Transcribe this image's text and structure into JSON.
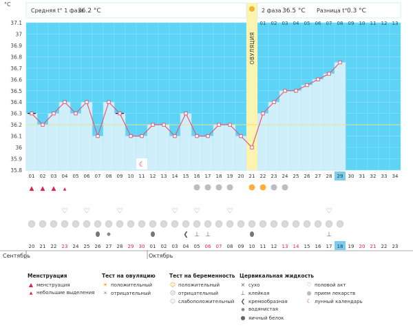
{
  "chart_data": {
    "type": "line",
    "unit_label": "°C",
    "header": {
      "phase1_label": "Средняя t° 1 фаза",
      "phase1_value": "36.2 °C",
      "phase2_label": "2 фаза",
      "phase2_value": "36.5 °C",
      "diff_label": "Разница t°",
      "diff_value": "0.3 °C"
    },
    "ylim": [
      35.8,
      37.1
    ],
    "y_ticks": [
      "35.8",
      "35.9",
      "36",
      "36.1",
      "36.2",
      "36.3",
      "36.4",
      "36.5",
      "36.6",
      "36.7",
      "36.8",
      "36.9",
      "37",
      "37.1"
    ],
    "coverline": 36.2,
    "ovulation_label": "ОВУЛЯЦИЯ",
    "ovulation_day": 21,
    "today_day": 29,
    "cycle_days": [
      "01",
      "02",
      "03",
      "04",
      "05",
      "06",
      "07",
      "08",
      "09",
      "10",
      "11",
      "12",
      "13",
      "14",
      "15",
      "16",
      "17",
      "18",
      "19",
      "20",
      "21",
      "22",
      "23",
      "24",
      "25",
      "26",
      "27",
      "28",
      "29",
      "30",
      "31",
      "32",
      "33",
      "34"
    ],
    "phase2_days": [
      "01",
      "02",
      "03",
      "04",
      "05",
      "06",
      "07",
      "08",
      "09",
      "10",
      "11",
      "12",
      "13"
    ],
    "temperatures": [
      36.3,
      36.2,
      36.3,
      36.4,
      36.3,
      36.4,
      36.1,
      36.4,
      36.3,
      36.1,
      36.1,
      36.2,
      36.2,
      36.1,
      36.3,
      36.1,
      36.1,
      36.2,
      36.2,
      36.1,
      36.0,
      36.3,
      36.4,
      36.5,
      36.5,
      36.55,
      36.6,
      36.65,
      36.75
    ],
    "excluded_days": [
      1,
      9
    ],
    "calendar_dates": [
      "20",
      "21",
      "22",
      "23",
      "24",
      "25",
      "26",
      "27",
      "28",
      "29",
      "30",
      "01",
      "02",
      "03",
      "04",
      "05",
      "06",
      "07",
      "08",
      "09",
      "10",
      "11",
      "12",
      "13",
      "14",
      "15",
      "16",
      "17",
      "18",
      "19",
      "20",
      "21",
      "22",
      "23"
    ],
    "red_date_days": [
      4,
      10,
      11,
      17,
      18,
      24,
      25,
      31,
      32
    ],
    "month_labels": [
      {
        "day": 1,
        "text": "Сентябрь"
      },
      {
        "day": 12,
        "text": "Октябрь"
      }
    ],
    "markers": {
      "menstruation": [
        1,
        2,
        3
      ],
      "spotting": [
        4
      ],
      "lunar": [
        11
      ],
      "ovulation_negative": [
        16,
        17,
        18,
        19
      ],
      "ovulation_positive": [
        21,
        22
      ],
      "ovulation_negative_late": [
        23,
        24
      ],
      "intercourse": [
        4,
        6,
        9,
        14,
        16,
        19,
        28
      ],
      "pills": [
        1,
        2,
        3,
        4,
        5,
        6,
        7,
        8,
        9,
        10,
        11,
        12,
        13,
        14,
        15,
        16,
        17,
        18,
        19,
        20,
        21,
        22,
        23,
        24,
        25,
        26,
        27,
        28,
        29
      ],
      "mucus_egg_white": [
        7,
        12,
        21
      ],
      "mucus_watery": [
        8
      ],
      "mucus_creamy": [
        15
      ],
      "mucus_sticky": [
        16,
        17,
        28
      ]
    }
  },
  "legend": {
    "menstruation_title": "Менструация",
    "menstruation": "менструация",
    "spotting": "небольшие выделения",
    "ovtest_title": "Тест на овуляцию",
    "ovtest_positive": "положительный",
    "ovtest_negative": "отрицательный",
    "pregtest_title": "Тест на беременность",
    "pregtest_positive": "положительный",
    "pregtest_negative": "отрицательный",
    "pregtest_weak": "слабоположительный",
    "mucus_title": "Цервикальная жидкость",
    "mucus_dry": "сухо",
    "mucus_sticky": "клейкая",
    "mucus_creamy": "кремообразная",
    "mucus_watery": "водянистая",
    "mucus_egg": "яичный белок",
    "intercourse": "половой акт",
    "pills": "прием лекарств",
    "lunar": "лунный календарь"
  },
  "colors": {
    "plot_bg": "#5dd3f5",
    "bar_fill": "#cfeffb",
    "line": "#e05a78",
    "ovulation_band": "#fbf3b0",
    "coverline": "#e6e38a",
    "today_cell": "#79cdee",
    "red_text": "#e0244a"
  }
}
